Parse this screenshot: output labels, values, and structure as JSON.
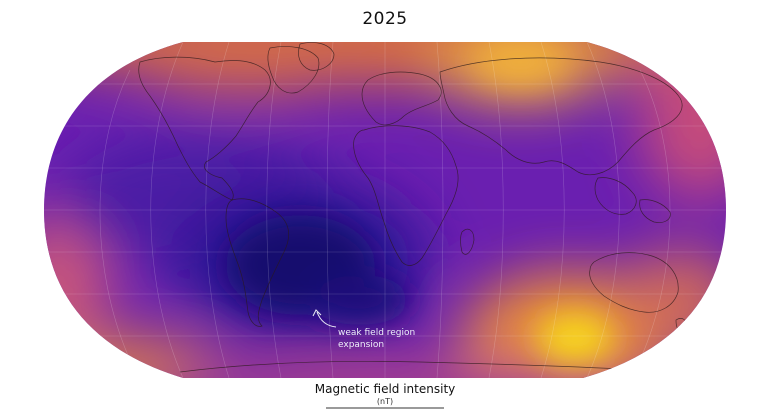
{
  "title": "2025",
  "annotation": {
    "line1": "weak field region",
    "line2": "expansion"
  },
  "legend": {
    "title": "Magnetic field intensity",
    "unit": "(nT)"
  },
  "colors": {
    "ocean_deep": "#1a0f6b",
    "low": "#3b1a9e",
    "mid": "#7a1fb0",
    "mid_high": "#b5388f",
    "high": "#e0854a",
    "max": "#f5d51f",
    "coastline": "#2b1a1a",
    "graticule": "#ffffff"
  }
}
